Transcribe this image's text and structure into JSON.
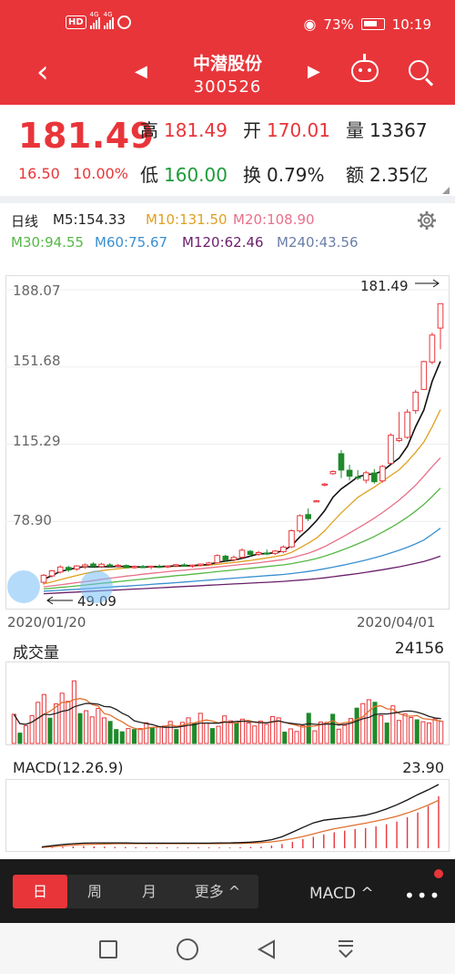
{
  "status_bar": {
    "hd_badge": "HD",
    "sim1_net": "4G",
    "sim2_net": "4G",
    "battery": "73%",
    "time": "10:19",
    "icons": [
      "eye-icon",
      "battery-icon",
      "signal-icon"
    ]
  },
  "header": {
    "title": "中潜股份",
    "code": "300526",
    "back_icon": "back-chevron-icon",
    "prev_icon": "prev-triangle-icon",
    "next_icon": "next-triangle-icon",
    "robot_icon": "robot-icon",
    "search_icon": "search-icon",
    "accent": "#e8353a"
  },
  "quote": {
    "price": "181.49",
    "change": "16.50",
    "change_pct": "10.00%",
    "fields": [
      {
        "label": "高",
        "value": "181.49",
        "color": "red"
      },
      {
        "label": "开",
        "value": "170.01",
        "color": "red"
      },
      {
        "label": "量",
        "value": "13367",
        "color": "dark"
      },
      {
        "label": "低",
        "value": "160.00",
        "color": "green"
      },
      {
        "label": "换",
        "value": "0.79%",
        "color": "dark"
      },
      {
        "label": "额",
        "value": "2.35亿",
        "color": "dark"
      }
    ]
  },
  "ma_legend": {
    "period": "日线",
    "items": [
      {
        "label": "M5:154.33",
        "color": "#222222"
      },
      {
        "label": "M10:131.50",
        "color": "#e0a020"
      },
      {
        "label": "M20:108.90",
        "color": "#e8708a"
      },
      {
        "label": "M30:94.55",
        "color": "#55b845"
      },
      {
        "label": "M60:75.67",
        "color": "#3a8fd0"
      },
      {
        "label": "M120:62.46",
        "color": "#6a1f6a"
      },
      {
        "label": "M240:43.56",
        "color": "#6a7fa8"
      }
    ]
  },
  "chart_data": [
    {
      "type": "candlestick",
      "title": "",
      "y_ticks": [
        "188.07",
        "151.68",
        "115.29",
        "78.90"
      ],
      "ylim": [
        42.5,
        188.07
      ],
      "x_labels": [
        "2020/01/20",
        "2020/04/01"
      ],
      "high_marker": "181.49",
      "low_marker": "49.09",
      "candles_ohlc": [
        [
          50.2,
          54.1,
          49.1,
          53.5
        ],
        [
          53.2,
          56.0,
          52.4,
          55.6
        ],
        [
          55.0,
          58.2,
          54.3,
          57.4
        ],
        [
          57.2,
          58.0,
          55.1,
          56.0
        ],
        [
          56.4,
          58.3,
          55.6,
          57.9
        ],
        [
          57.6,
          59.1,
          56.5,
          58.4
        ],
        [
          58.8,
          59.6,
          57.3,
          57.6
        ],
        [
          57.6,
          59.4,
          56.9,
          58.7
        ],
        [
          58.4,
          59.2,
          57.1,
          57.8
        ],
        [
          57.9,
          58.9,
          57.2,
          58.2
        ],
        [
          58.1,
          58.6,
          56.8,
          57.1
        ],
        [
          57.3,
          58.1,
          56.5,
          57.6
        ],
        [
          57.6,
          58.4,
          56.9,
          57.3
        ],
        [
          57.3,
          58.0,
          56.4,
          57.8
        ],
        [
          57.7,
          58.6,
          57.0,
          57.4
        ],
        [
          57.5,
          58.2,
          56.8,
          57.9
        ],
        [
          57.9,
          58.8,
          57.4,
          58.5
        ],
        [
          58.4,
          59.1,
          57.6,
          57.9
        ],
        [
          57.9,
          58.6,
          57.1,
          58.3
        ],
        [
          58.2,
          59.0,
          57.7,
          58.8
        ],
        [
          58.6,
          59.8,
          58.0,
          59.3
        ],
        [
          59.4,
          63.4,
          59.0,
          62.8
        ],
        [
          62.5,
          63.2,
          60.0,
          60.7
        ],
        [
          60.8,
          62.8,
          60.0,
          61.9
        ],
        [
          62.0,
          66.2,
          61.3,
          65.3
        ],
        [
          64.8,
          65.4,
          62.4,
          63.3
        ],
        [
          63.4,
          65.0,
          62.6,
          64.2
        ],
        [
          64.0,
          65.6,
          63.0,
          63.6
        ],
        [
          63.8,
          65.4,
          63.1,
          64.9
        ],
        [
          64.6,
          67.6,
          64.0,
          66.8
        ],
        [
          66.9,
          75.0,
          66.4,
          74.5
        ],
        [
          74.4,
          82.2,
          73.5,
          81.6
        ],
        [
          82.1,
          85.0,
          79.0,
          80.2
        ],
        [
          88.3,
          89.0,
          87.9,
          88.6
        ],
        [
          96.0,
          97.0,
          95.4,
          96.5
        ],
        [
          101.4,
          103.0,
          100.8,
          102.4
        ],
        [
          110.8,
          112.5,
          99.3,
          103.1
        ],
        [
          103.0,
          105.6,
          98.2,
          100.2
        ],
        [
          99.8,
          103.1,
          98.4,
          99.6
        ],
        [
          98.3,
          102.7,
          96.8,
          101.8
        ],
        [
          101.7,
          103.6,
          96.7,
          97.6
        ],
        [
          98.0,
          105.4,
          97.2,
          104.8
        ],
        [
          106.2,
          120.4,
          105.9,
          119.5
        ],
        [
          117.0,
          130.5,
          116.2,
          118.0
        ],
        [
          118.5,
          131.8,
          117.8,
          130.4
        ],
        [
          131.1,
          140.9,
          129.6,
          139.8
        ],
        [
          141.1,
          154.6,
          140.8,
          154.2
        ],
        [
          154.0,
          167.9,
          152.9,
          166.7
        ],
        [
          170.0,
          181.5,
          160.0,
          181.5
        ]
      ],
      "ma5": [
        51.5,
        53.4,
        55.3,
        56.2,
        57.0,
        57.6,
        57.4,
        57.6,
        57.5,
        57.7,
        57.6,
        57.5,
        57.4,
        57.5,
        57.6,
        57.7,
        57.9,
        58.0,
        58.1,
        58.3,
        58.6,
        59.6,
        60.2,
        60.7,
        61.5,
        62.5,
        63.6,
        63.8,
        64.1,
        65.1,
        67.5,
        71.6,
        75.1,
        79.2,
        84.0,
        90.3,
        94.2,
        97.0,
        99.9,
        100.9,
        101.3,
        102.6,
        105.8,
        108.7,
        114.3,
        123.6,
        131.4,
        144.9,
        154.3
      ],
      "ma10": [
        49.4,
        50.4,
        51.4,
        52.4,
        53.4,
        54.3,
        55.1,
        55.7,
        56.2,
        56.6,
        57.0,
        57.2,
        57.3,
        57.4,
        57.5,
        57.6,
        57.7,
        57.8,
        57.9,
        58.0,
        58.3,
        58.6,
        59.1,
        59.5,
        60.0,
        60.5,
        61.1,
        61.7,
        62.3,
        63.0,
        64.3,
        66.4,
        68.6,
        71.0,
        74.5,
        78.8,
        82.9,
        86.6,
        90.2,
        92.7,
        95.0,
        97.8,
        100.5,
        103.2,
        107.1,
        111.5,
        116.3,
        123.5,
        131.5
      ],
      "ma20": [
        48.1,
        48.5,
        49.0,
        49.5,
        50.0,
        50.5,
        51.0,
        51.6,
        52.1,
        52.6,
        53.1,
        53.5,
        54.0,
        54.4,
        54.8,
        55.2,
        55.6,
        55.9,
        56.3,
        56.6,
        57.0,
        57.4,
        57.8,
        58.2,
        58.6,
        59.0,
        59.4,
        59.9,
        60.4,
        60.9,
        61.7,
        62.8,
        63.9,
        65.3,
        67.0,
        69.1,
        71.2,
        73.4,
        75.7,
        78.0,
        80.4,
        83.1,
        85.9,
        88.9,
        92.3,
        96.0,
        100.2,
        104.7,
        108.9
      ],
      "ma30": [
        47.1,
        47.4,
        47.8,
        48.1,
        48.5,
        48.9,
        49.3,
        49.7,
        50.1,
        50.5,
        50.9,
        51.3,
        51.7,
        52.1,
        52.5,
        52.9,
        53.3,
        53.6,
        54.0,
        54.4,
        54.8,
        55.2,
        55.6,
        56.0,
        56.4,
        56.8,
        57.2,
        57.6,
        58.0,
        58.4,
        59.0,
        59.7,
        60.5,
        61.4,
        62.5,
        63.8,
        65.2,
        66.7,
        68.3,
        70.0,
        71.8,
        73.8,
        76.0,
        78.3,
        80.9,
        83.8,
        86.9,
        90.6,
        94.6
      ],
      "ma60": [
        46.0,
        46.2,
        46.4,
        46.7,
        46.9,
        47.2,
        47.4,
        47.7,
        47.9,
        48.2,
        48.4,
        48.7,
        48.9,
        49.2,
        49.5,
        49.7,
        50.0,
        50.3,
        50.6,
        50.9,
        51.2,
        51.5,
        51.8,
        52.1,
        52.4,
        52.7,
        53.0,
        53.3,
        53.6,
        53.9,
        54.3,
        54.8,
        55.3,
        55.9,
        56.6,
        57.3,
        58.1,
        58.9,
        59.8,
        60.7,
        61.7,
        62.8,
        64.0,
        65.3,
        66.7,
        68.3,
        70.1,
        72.8,
        75.7
      ],
      "ma120": [
        44.8,
        45.0,
        45.2,
        45.4,
        45.6,
        45.8,
        46.0,
        46.2,
        46.4,
        46.6,
        46.8,
        47.0,
        47.2,
        47.4,
        47.6,
        47.8,
        48.0,
        48.2,
        48.4,
        48.6,
        48.8,
        49.0,
        49.2,
        49.4,
        49.6,
        49.8,
        50.0,
        50.2,
        50.4,
        50.6,
        50.9,
        51.2,
        51.5,
        51.9,
        52.3,
        52.8,
        53.3,
        53.8,
        54.3,
        54.9,
        55.5,
        56.1,
        56.8,
        57.5,
        58.3,
        59.1,
        60.0,
        61.2,
        62.5
      ]
    },
    {
      "type": "bar",
      "title": "成交量",
      "max_label": "24156",
      "values": [
        9000,
        3200,
        5500,
        8600,
        12700,
        15100,
        7800,
        12200,
        15500,
        13000,
        19300,
        9200,
        10100,
        8200,
        10800,
        7900,
        6800,
        4300,
        3600,
        4600,
        4300,
        4600,
        6400,
        4900,
        5100,
        5400,
        6800,
        4300,
        6500,
        7900,
        6300,
        9300,
        6300,
        4600,
        5300,
        8500,
        7000,
        6200,
        7500,
        6300,
        5400,
        6900,
        5900,
        8300,
        7900,
        3500,
        4500,
        3700,
        5500,
        9300,
        3900,
        6600,
        6500,
        9000,
        4400,
        5600,
        7700,
        10900,
        12300,
        13500,
        12700,
        8600,
        6300,
        11600,
        7100,
        9100,
        8000,
        7300,
        6700,
        6300,
        7600,
        6800
      ],
      "up": [
        true,
        false,
        true,
        true,
        true,
        true,
        false,
        true,
        true,
        true,
        true,
        false,
        true,
        true,
        true,
        true,
        false,
        false,
        false,
        true,
        false,
        true,
        true,
        false,
        true,
        true,
        true,
        false,
        true,
        true,
        false,
        true,
        true,
        false,
        true,
        true,
        true,
        false,
        true,
        true,
        true,
        true,
        true,
        true,
        true,
        false,
        true,
        true,
        true,
        false,
        true,
        true,
        true,
        false,
        true,
        true,
        true,
        false,
        true,
        true,
        false,
        true,
        false,
        true,
        true,
        true,
        true,
        false,
        true,
        true,
        true,
        true
      ]
    },
    {
      "type": "bar",
      "title": "MACD(12.26.9)",
      "max_label": "23.90",
      "hist": [
        0.1,
        0.3,
        0.5,
        0.7,
        0.8,
        0.7,
        0.6,
        0.5,
        0.5,
        0.4,
        0.4,
        0.3,
        0.3,
        0.3,
        0.3,
        0.3,
        0.3,
        0.3,
        0.3,
        0.4,
        0.5,
        0.6,
        1.0,
        1.6,
        2.4,
        3.4,
        4.3,
        5.2,
        6.0,
        6.6,
        7.2,
        7.6,
        8.2,
        9.0,
        10.0,
        11.6,
        13.4,
        15.8,
        19.5
      ],
      "dif": [
        0.5,
        1.0,
        1.4,
        1.7,
        1.9,
        2.0,
        2.0,
        2.0,
        2.0,
        1.9,
        1.9,
        1.9,
        1.9,
        1.9,
        1.9,
        1.9,
        1.9,
        2.0,
        2.0,
        2.1,
        2.3,
        2.6,
        3.2,
        4.3,
        6.0,
        7.8,
        9.5,
        10.5,
        11.0,
        11.4,
        11.8,
        12.4,
        13.4,
        14.7,
        16.3,
        18.1,
        20.1,
        21.9,
        23.9
      ],
      "dea": [
        0.3,
        0.6,
        0.9,
        1.2,
        1.4,
        1.5,
        1.6,
        1.7,
        1.7,
        1.7,
        1.7,
        1.7,
        1.7,
        1.7,
        1.7,
        1.7,
        1.7,
        1.7,
        1.8,
        1.8,
        1.9,
        2.1,
        2.4,
        2.9,
        3.6,
        4.4,
        5.4,
        6.4,
        7.3,
        8.0,
        8.7,
        9.4,
        10.2,
        11.0,
        12.0,
        13.2,
        14.6,
        16.2,
        18.0
      ]
    }
  ],
  "period_tabs": [
    "日",
    "周",
    "月",
    "更多 ^"
  ],
  "indicator_selector": "MACD ^",
  "more_menu_icon": "more-dots-icon",
  "system_nav": [
    "square-icon",
    "home-circle-icon",
    "back-triangle-icon",
    "download-icon"
  ]
}
